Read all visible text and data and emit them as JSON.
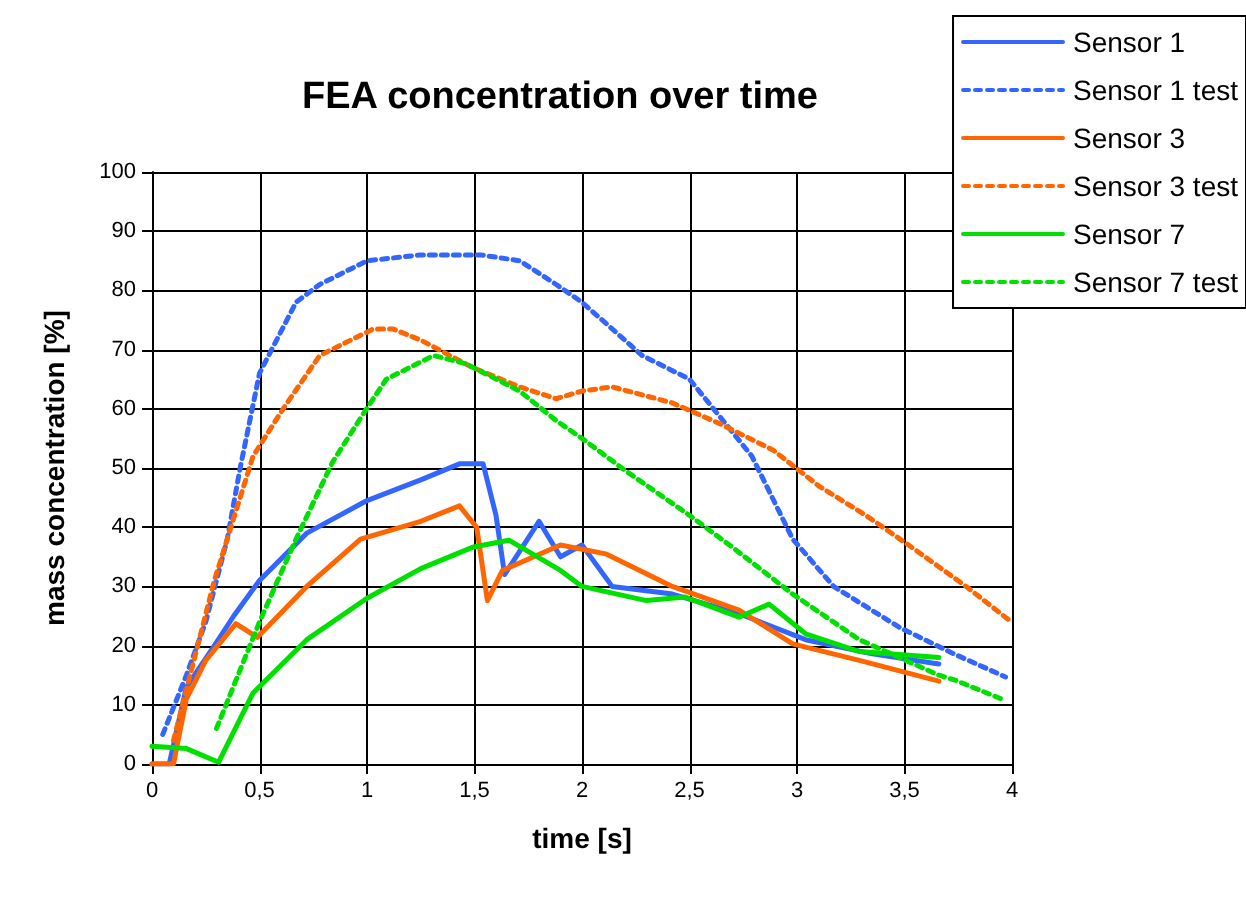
{
  "chart_data": {
    "type": "line",
    "title": "FEA concentration over time",
    "xlabel": "time [s]",
    "ylabel": "mass concentration [%]",
    "xlim": [
      0,
      4
    ],
    "ylim": [
      0,
      100
    ],
    "xticks": [
      0,
      {
        "value": 0.5,
        "label": "0,5"
      },
      1,
      {
        "value": 1.5,
        "label": "1,5"
      },
      2,
      {
        "value": 2.5,
        "label": "2,5"
      },
      3,
      {
        "value": 3.5,
        "label": "3,5"
      },
      4
    ],
    "yticks": [
      0,
      10,
      20,
      30,
      40,
      50,
      60,
      70,
      80,
      90,
      100
    ],
    "grid": true,
    "legend": "top right",
    "marker": "none",
    "series": [
      {
        "name": "Sensor 1",
        "color": "#3366ff",
        "line_style": "solid",
        "x": [
          0,
          0.08,
          0.16,
          0.29,
          0.38,
          0.5,
          0.72,
          1.0,
          1.25,
          1.43,
          1.54,
          1.6,
          1.64,
          1.8,
          1.9,
          2.0,
          2.14,
          2.42,
          2.73,
          3.04,
          3.35,
          3.66
        ],
        "values": [
          0,
          0,
          13,
          20,
          25,
          31,
          39,
          44.5,
          48,
          50.7,
          50.7,
          42,
          32,
          41,
          35,
          37,
          30,
          28.7,
          25.4,
          21,
          18.6,
          16.9
        ]
      },
      {
        "name": "Sensor 1 test",
        "color": "#3366ff",
        "line_style": "dashed",
        "x": [
          0.05,
          0.16,
          0.25,
          0.35,
          0.41,
          0.5,
          0.67,
          0.78,
          1.0,
          1.25,
          1.53,
          1.71,
          1.88,
          2.0,
          2.28,
          2.5,
          2.79,
          2.98,
          3.17,
          3.48,
          3.73,
          3.97
        ],
        "values": [
          5,
          15,
          24,
          38,
          50,
          66,
          78,
          81,
          85,
          86,
          86,
          85,
          81,
          78,
          69,
          65,
          52,
          38,
          30,
          23,
          18.6,
          14.7
        ]
      },
      {
        "name": "Sensor 3",
        "color": "#ff6600",
        "line_style": "solid",
        "x": [
          0,
          0.1,
          0.16,
          0.25,
          0.39,
          0.49,
          0.72,
          0.97,
          1.25,
          1.43,
          1.51,
          1.56,
          1.63,
          1.9,
          2.11,
          2.42,
          2.73,
          2.98,
          3.29,
          3.66
        ],
        "values": [
          0,
          0,
          11,
          17.5,
          23.7,
          21.4,
          30,
          38,
          41,
          43.6,
          40,
          27.6,
          32.7,
          37,
          35.5,
          30,
          26,
          20.3,
          17.5,
          14
        ]
      },
      {
        "name": "Sensor 3 test",
        "color": "#ff6600",
        "line_style": "dashed",
        "x": [
          0.1,
          0.29,
          0.47,
          0.61,
          0.78,
          1.03,
          1.12,
          1.25,
          1.49,
          1.71,
          1.88,
          2.0,
          2.14,
          2.42,
          2.64,
          2.89,
          3.1,
          3.32,
          3.53,
          3.79,
          3.99
        ],
        "values": [
          4,
          31,
          52,
          60,
          69,
          73.5,
          73.5,
          71.6,
          67,
          63.7,
          61.7,
          63,
          63.7,
          61,
          57.5,
          53,
          47,
          42,
          36.7,
          29.9,
          24.2
        ]
      },
      {
        "name": "Sensor 7",
        "color": "#00e000",
        "line_style": "solid",
        "x": [
          0,
          0.16,
          0.31,
          0.47,
          0.72,
          1.0,
          1.25,
          1.49,
          1.66,
          1.9,
          2.0,
          2.3,
          2.48,
          2.73,
          2.87,
          3.04,
          3.29,
          3.66
        ],
        "values": [
          3,
          2.6,
          0.3,
          12,
          21,
          28,
          33,
          36.6,
          37.8,
          32.7,
          30,
          27.6,
          28.2,
          24.8,
          27,
          22,
          19,
          18
        ]
      },
      {
        "name": "Sensor 7 test",
        "color": "#00e000",
        "line_style": "dashed",
        "x": [
          0.3,
          0.5,
          0.67,
          0.84,
          0.98,
          1.09,
          1.31,
          1.46,
          1.71,
          1.88,
          2.0,
          2.2,
          2.5,
          2.7,
          2.98,
          3.29,
          3.66,
          3.74,
          3.97
        ],
        "values": [
          6,
          24,
          38,
          51,
          59,
          65,
          69,
          67.6,
          63,
          58,
          55,
          49.6,
          42,
          36.6,
          28.7,
          21,
          15,
          14.1,
          10.7
        ]
      }
    ]
  }
}
